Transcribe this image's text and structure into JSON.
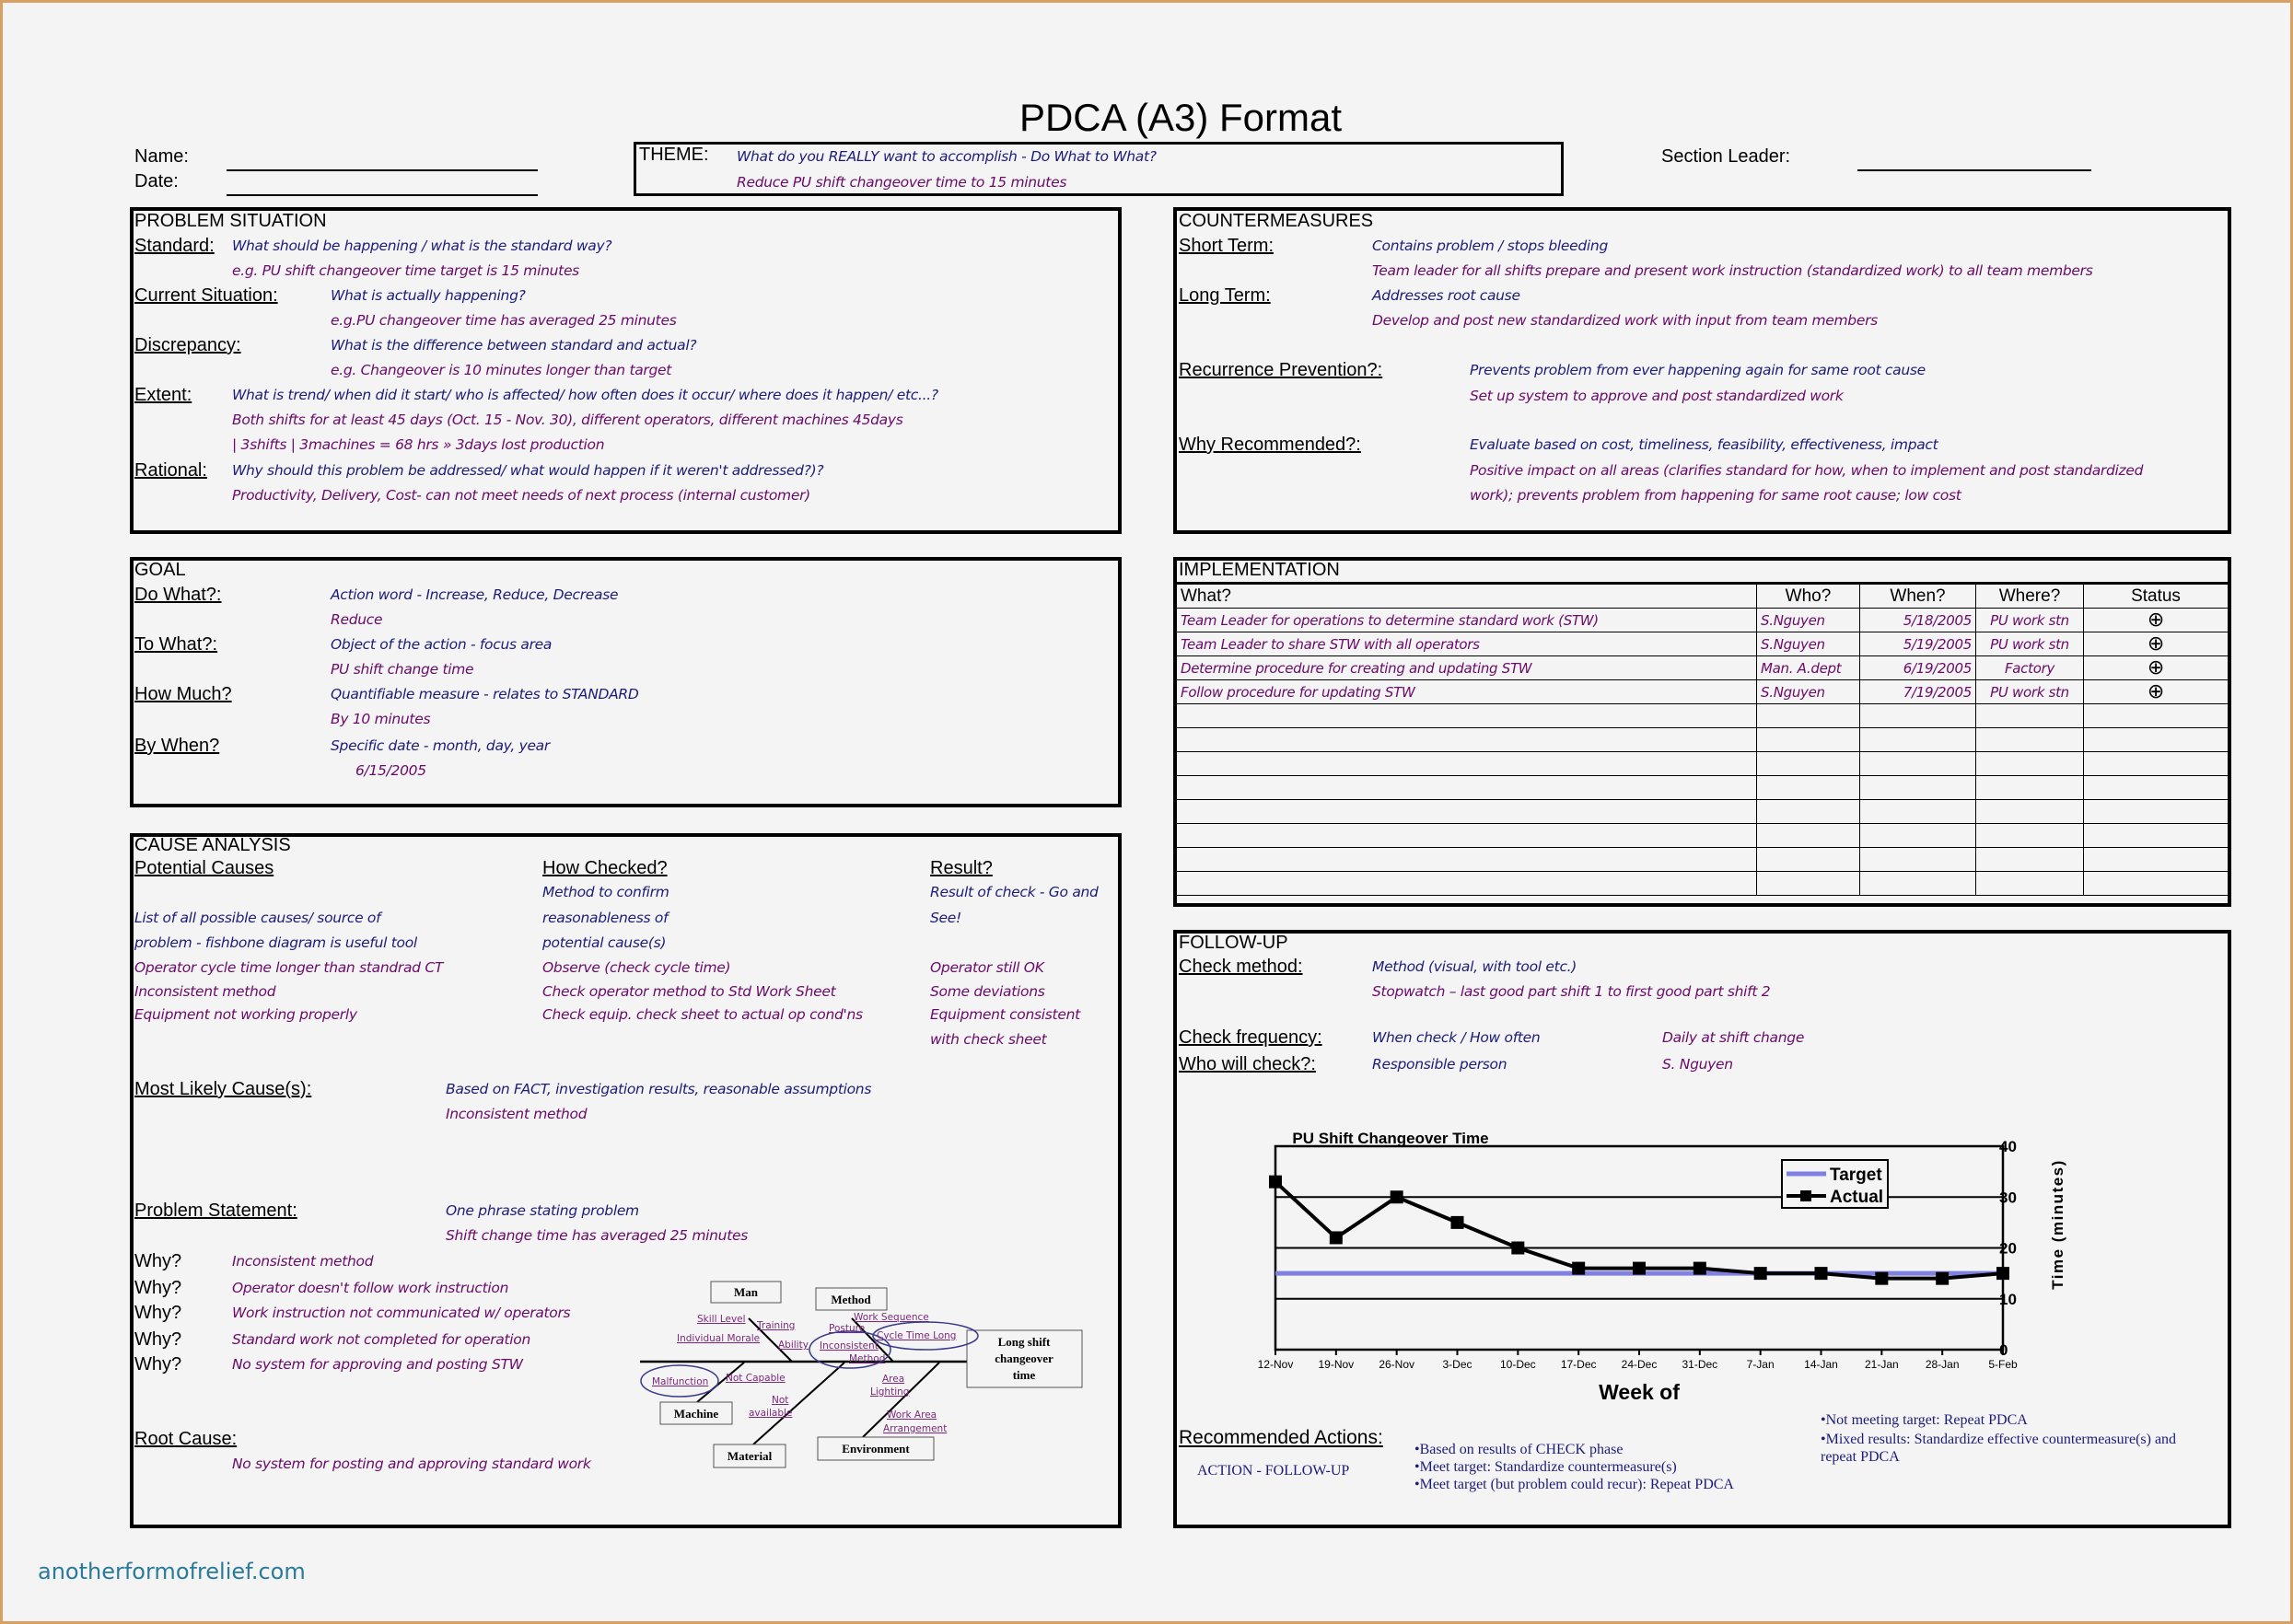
{
  "title": "PDCA (A3) Format",
  "header": {
    "name_label": "Name:",
    "date_label": "Date:",
    "section_leader_label": "Section Leader:",
    "theme_label": "THEME:",
    "theme_question": "What do you REALLY want to accomplish - Do What to What?",
    "theme_answer": "Reduce PU shift changeover time to 15 minutes"
  },
  "problem_situation": {
    "title": "PROBLEM SITUATION",
    "standard_label": "Standard:",
    "standard_q": "What should be happening / what is the standard way?",
    "standard_a": "e.g. PU shift changeover time target is 15 minutes",
    "current_label": "Current Situation:",
    "current_q": "What is actually happening?",
    "current_a": "e.g.PU changeover time has averaged 25 minutes",
    "discrepancy_label": "Discrepancy:",
    "discrepancy_q": "What is the difference between standard and actual?",
    "discrepancy_a": "e.g. Changeover is 10 minutes longer than target",
    "extent_label": "Extent:",
    "extent_q": "What is trend/ when did it start/ who is affected/ how often does it occur/ where does it happen/ etc...?",
    "extent_a1": "Both shifts for at least 45 days (Oct. 15 - Nov. 30), different operators, different machines 45days",
    "extent_a2": "| 3shifts | 3machines = 68 hrs » 3days lost production",
    "rational_label": "Rational:",
    "rational_q": "Why should this problem be addressed/ what would happen if it weren't addressed?)?",
    "rational_a": "Productivity, Delivery, Cost- can not meet needs of next process (internal customer)"
  },
  "countermeasures": {
    "title": "COUNTERMEASURES",
    "short_label": "Short Term:",
    "short_q": "Contains problem / stops bleeding",
    "short_a": "Team leader for all shifts prepare and present work instruction (standardized work) to all team members",
    "long_label": "Long Term:",
    "long_q": "Addresses root cause",
    "long_a": "Develop and post new standardized work with input from team members",
    "recurrence_label": "Recurrence Prevention?:",
    "recurrence_q": "Prevents problem from ever happening again for same root cause",
    "recurrence_a": "Set up system to approve and post standardized work",
    "why_label": "Why Recommended?:",
    "why_q": "Evaluate based on cost, timeliness, feasibility, effectiveness, impact",
    "why_a1": "Positive impact on all areas (clarifies standard for how, when to implement and post standardized",
    "why_a2": "work); prevents problem from happening for same root cause; low cost"
  },
  "goal": {
    "title": "GOAL",
    "do_label": "Do What?:",
    "do_q": "Action word - Increase, Reduce, Decrease",
    "do_a": "Reduce",
    "to_label": "To What?:",
    "to_q": "Object of the action - focus area",
    "to_a": "PU shift change time",
    "much_label": "How Much?",
    "much_q": "Quantifiable measure - relates to STANDARD",
    "much_a": "By 10 minutes",
    "when_label": "By When?",
    "when_q": "Specific date - month, day, year",
    "when_a": "6/15/2005"
  },
  "implementation": {
    "title": "IMPLEMENTATION",
    "columns": [
      "What?",
      "Who?",
      "When?",
      "Where?",
      "Status"
    ],
    "rows": [
      {
        "what": "Team Leader for operations to determine standard work (STW)",
        "who": "S.Nguyen",
        "when": "5/18/2005",
        "where": "PU work stn",
        "status": "⊕"
      },
      {
        "what": "Team Leader to share STW with all operators",
        "who": "S.Nguyen",
        "when": "5/19/2005",
        "where": "PU work stn",
        "status": "⊕"
      },
      {
        "what": "Determine procedure for creating and updating STW",
        "who": "Man. A.dept",
        "when": "6/19/2005",
        "where": "Factory",
        "status": "⊕"
      },
      {
        "what": "Follow procedure for updating STW",
        "who": "S.Nguyen",
        "when": "7/19/2005",
        "where": "PU work stn",
        "status": "⊕"
      }
    ],
    "status_icon": "circled-plus-icon"
  },
  "cause_analysis": {
    "title": "CAUSE ANALYSIS",
    "col1_label": "Potential Causes",
    "col2_label": "How Checked?",
    "col3_label": "Result?",
    "col2_q1": "Method to confirm",
    "col2_q2": "reasonableness of",
    "col2_q3": "potential cause(s)",
    "col3_q1": "Result of check - Go and",
    "col3_q2": "See!",
    "col1_q1": "List of all possible causes/ source of",
    "col1_q2": "problem - fishbone diagram is useful tool",
    "causes": [
      {
        "cause": "Operator cycle time longer than standrad CT",
        "check": "Observe (check cycle time)",
        "result": "Operator still OK"
      },
      {
        "cause": "Inconsistent method",
        "check": "Check operator method to Std Work Sheet",
        "result": "Some deviations"
      },
      {
        "cause": "Equipment not working properly",
        "check": "Check equip. check sheet to actual op cond'ns",
        "result": "Equipment consistent"
      }
    ],
    "result_cont": "with check sheet",
    "likely_label": "Most Likely Cause(s):",
    "likely_q": "Based on FACT, investigation results, reasonable assumptions",
    "likely_a": "Inconsistent method",
    "statement_label": "Problem Statement:",
    "statement_q": "One phrase stating problem",
    "statement_a": "Shift change time has averaged 25 minutes",
    "why_label": "Why?",
    "whys": [
      "Inconsistent method",
      "Operator doesn't follow work instruction",
      "Work instruction not communicated w/ operators",
      "Standard work not completed for operation",
      "No system for approving and posting STW"
    ],
    "root_label": "Root Cause:",
    "root_a": "No system for posting and approving standard work"
  },
  "fishbone": {
    "effect": [
      "Long shift",
      "changeover",
      "time"
    ],
    "categories": {
      "man": "Man",
      "method": "Method",
      "machine": "Machine",
      "material": "Material",
      "environment": "Environment"
    },
    "causes": {
      "skill": "Skill Level",
      "training": "Training",
      "morale": "Individual Morale",
      "ability": "Ability",
      "posture": "Posture",
      "sequence": "Work Sequence",
      "cycle": "Cycle Time Long",
      "inconsistent1": "Inconsistent",
      "inconsistent2": "Method",
      "malfunction": "Malfunction",
      "notcapable": "Not Capable",
      "area": "Area",
      "lighting": "Lighting",
      "not1": "Not",
      "not2": "available",
      "workarea1": "Work Area",
      "workarea2": "Arrangement"
    },
    "circle_color": "#3a3a8a"
  },
  "followup": {
    "title": "FOLLOW-UP",
    "method_label": "Check method:",
    "method_q": "Method (visual, with tool etc.)",
    "method_a": "Stopwatch – last good part shift 1 to first good part shift 2",
    "freq_label": "Check frequency:",
    "freq_q": "When check / How often",
    "freq_a": "Daily at shift change",
    "who_label": "Who will check?:",
    "who_q": "Responsible person",
    "who_a": "S. Nguyen",
    "rec_label": "Recommended Actions:",
    "rec_sub": "ACTION - FOLLOW-UP",
    "bullets_left": [
      "•Based on results of CHECK phase",
      "•Meet target: Standardize countermeasure(s)",
      "•Meet target (but problem could recur): Repeat PDCA"
    ],
    "bullets_right": [
      "•Not meeting target: Repeat PDCA",
      "•Mixed results: Standardize effective countermeasure(s) and",
      "repeat PDCA"
    ]
  },
  "chart_data": {
    "type": "line",
    "title": "PU Shift Changeover Time",
    "xlabel": "Week of",
    "ylabel": "Time (minutes)",
    "categories": [
      "12-Nov",
      "19-Nov",
      "26-Nov",
      "3-Dec",
      "10-Dec",
      "17-Dec",
      "24-Dec",
      "31-Dec",
      "7-Jan",
      "14-Jan",
      "21-Jan",
      "28-Jan",
      "5-Feb"
    ],
    "series": [
      {
        "name": "Target",
        "values": [
          15,
          15,
          15,
          15,
          15,
          15,
          15,
          15,
          15,
          15,
          15,
          15,
          15
        ],
        "color": "#8080e0"
      },
      {
        "name": "Actual",
        "values": [
          33,
          22,
          30,
          25,
          20,
          16,
          16,
          16,
          15,
          15,
          14,
          14,
          15
        ],
        "color": "#000000",
        "marker": "square"
      }
    ],
    "ylim": [
      0,
      40
    ],
    "yticks": [
      0,
      10,
      20,
      30,
      40
    ],
    "y_axis_side": "right",
    "grid": true,
    "legend_placement": "top-right"
  },
  "watermark": "anotherformofrelief.com",
  "colors": {
    "question": "#1c1c78",
    "answer": "#6a0a6a",
    "border": "#d8a062",
    "watermark": "#2a7a9a"
  }
}
